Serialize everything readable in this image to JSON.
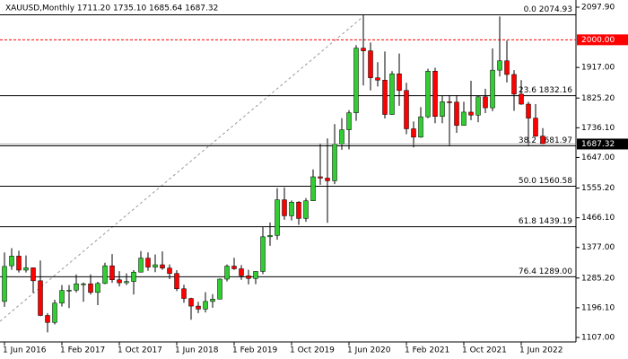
{
  "chart_data": {
    "type": "candlestick",
    "title": "XAUUSD,Monthly  1711.20 1735.10 1685.64 1687.32",
    "categories": [
      "1 Jun 2016",
      null,
      null,
      null,
      null,
      null,
      null,
      null,
      "1 Feb 2017",
      null,
      null,
      null,
      null,
      null,
      null,
      null,
      "1 Oct 2017",
      null,
      null,
      null,
      null,
      null,
      null,
      null,
      "1 Jun 2018",
      null,
      null,
      null,
      null,
      null,
      null,
      null,
      "1 Feb 2019",
      null,
      null,
      null,
      null,
      null,
      null,
      null,
      "1 Oct 2019",
      null,
      null,
      null,
      null,
      null,
      null,
      null,
      "1 Jun 2020",
      null,
      null,
      null,
      null,
      null,
      null,
      null,
      "1 Feb 2021",
      null,
      null,
      null,
      null,
      null,
      null,
      null,
      "1 Oct 2021",
      null,
      null,
      null,
      null,
      null,
      null,
      null,
      "1 Jun 2022",
      null,
      null,
      null
    ],
    "open": [
      1215,
      1322,
      1351,
      1309,
      1316,
      1277,
      1173,
      1152,
      1210,
      1248,
      1249,
      1268,
      1268,
      1242,
      1269,
      1322,
      1280,
      1271,
      1275,
      1303,
      1345,
      1318,
      1325,
      1315,
      1299,
      1253,
      1224,
      1201,
      1192,
      1215,
      1222,
      1282,
      1321,
      1313,
      1292,
      1284,
      1305,
      1409,
      1413,
      1520,
      1472,
      1513,
      1464,
      1517,
      1589,
      1585,
      1577,
      1687,
      1730,
      1781,
      1975,
      1967,
      1886,
      1879,
      1776,
      1898,
      1848,
      1733,
      1708,
      1769,
      1906,
      1770,
      1814,
      1813,
      1743,
      1783,
      1774,
      1829,
      1796,
      1909,
      1937,
      1896,
      1837,
      1807,
      1765,
      1711.2
    ],
    "high": [
      1362,
      1375,
      1367,
      1353,
      1317,
      1338,
      1180,
      1220,
      1264,
      1264,
      1296,
      1272,
      1296,
      1274,
      1331,
      1357,
      1306,
      1299,
      1309,
      1366,
      1362,
      1356,
      1365,
      1326,
      1309,
      1265,
      1226,
      1214,
      1243,
      1237,
      1284,
      1326,
      1346,
      1324,
      1310,
      1306,
      1439,
      1452,
      1555,
      1557,
      1518,
      1516,
      1525,
      1611,
      1689,
      1704,
      1747,
      1765,
      1789,
      1984,
      2074.93,
      1992,
      1933,
      1965,
      1906,
      1959,
      1871,
      1755,
      1798,
      1913,
      1916,
      1833,
      1834,
      1834,
      1814,
      1877,
      1831,
      1853,
      1974,
      2070,
      1998,
      1909,
      1879,
      1814,
      1807,
      1735.1
    ],
    "low": [
      1199,
      1310,
      1302,
      1302,
      1241,
      1171,
      1122,
      1146,
      1200,
      1195,
      1242,
      1214,
      1236,
      1204,
      1267,
      1271,
      1260,
      1264,
      1236,
      1302,
      1307,
      1303,
      1310,
      1282,
      1246,
      1211,
      1160,
      1180,
      1182,
      1196,
      1221,
      1275,
      1310,
      1280,
      1266,
      1267,
      1297,
      1382,
      1400,
      1460,
      1458,
      1445,
      1454,
      1517,
      1565,
      1451,
      1567,
      1670,
      1671,
      1757,
      1863,
      1848,
      1860,
      1764,
      1775,
      1802,
      1717,
      1677,
      1706,
      1765,
      1750,
      1750,
      1682,
      1721,
      1746,
      1759,
      1753,
      1780,
      1786,
      1890,
      1872,
      1787,
      1805,
      1681,
      1709,
      1685.64
    ],
    "close": [
      1320,
      1351,
      1309,
      1316,
      1277,
      1173,
      1152,
      1210,
      1248,
      1249,
      1268,
      1268,
      1242,
      1269,
      1322,
      1280,
      1271,
      1275,
      1303,
      1345,
      1318,
      1325,
      1315,
      1299,
      1253,
      1224,
      1201,
      1192,
      1215,
      1222,
      1282,
      1321,
      1313,
      1292,
      1284,
      1305,
      1409,
      1413,
      1520,
      1472,
      1513,
      1464,
      1517,
      1589,
      1585,
      1577,
      1687,
      1730,
      1781,
      1975,
      1967,
      1886,
      1879,
      1776,
      1898,
      1848,
      1733,
      1708,
      1769,
      1906,
      1770,
      1814,
      1813,
      1743,
      1783,
      1774,
      1829,
      1796,
      1909,
      1937,
      1896,
      1837,
      1807,
      1765,
      1711,
      1687.32
    ],
    "up_color": "#32cd32",
    "down_color": "#ff0000",
    "ylim": [
      1093.5,
      2119.4
    ],
    "yticks": [
      {
        "value": 2097.9,
        "label": "2097.90"
      },
      {
        "value": 1917.0,
        "label": "1917.00"
      },
      {
        "value": 1825.2,
        "label": "1825.20"
      },
      {
        "value": 1736.1,
        "label": "1736.10"
      },
      {
        "value": 1647.0,
        "label": "1647.00"
      },
      {
        "value": 1555.2,
        "label": "1555.20"
      },
      {
        "value": 1466.1,
        "label": "1466.10"
      },
      {
        "value": 1377.0,
        "label": "1377.00"
      },
      {
        "value": 1285.2,
        "label": "1285.20"
      },
      {
        "value": 1196.1,
        "label": "1196.10"
      },
      {
        "value": 1107.0,
        "label": "1107.00"
      }
    ],
    "fib_levels": [
      {
        "label": "0.0 2074.93",
        "value": 2074.93
      },
      {
        "label": "23.6 1832.16",
        "value": 1832.16
      },
      {
        "label": "38.2 1681.97",
        "value": 1681.97
      },
      {
        "label": "50.0 1560.58",
        "value": 1560.58
      },
      {
        "label": "61.8 1439.19",
        "value": 1439.19
      },
      {
        "label": "76.4 1289.00",
        "value": 1289.0
      }
    ],
    "hline": {
      "value": 2000,
      "label": "2000.00",
      "color": "#ff0000"
    },
    "price_line": {
      "value": 1687.32,
      "label": "1687.32"
    }
  }
}
